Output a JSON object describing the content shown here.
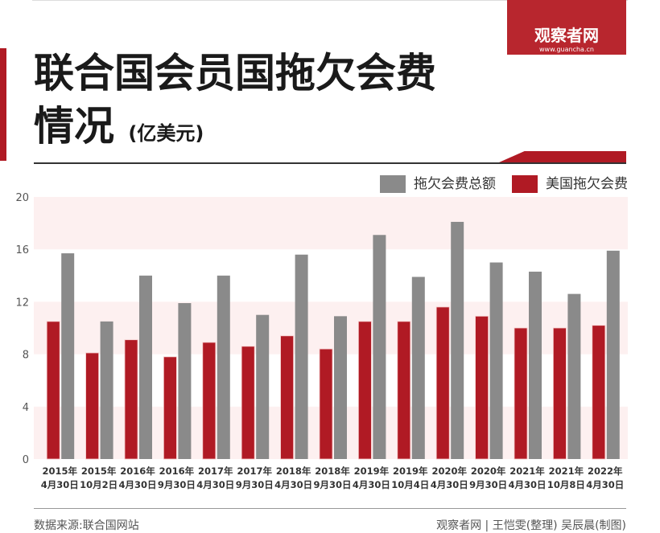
{
  "logo": {
    "name": "观察者网",
    "url": "www.guancha.cn"
  },
  "title_line1": "联合国会员国拖欠会费",
  "title_line2": "情况",
  "title_unit": "(亿美元)",
  "footer": {
    "source": "数据来源:联合国网站",
    "credit": "观察者网 | 王恺雯(整理) 吴辰晨(制图)"
  },
  "colors": {
    "accent": "#b01a24",
    "gray": "#8a8a8a",
    "band": "#fdf0f0"
  },
  "chart_data": {
    "type": "bar",
    "categories": [
      "2015年\n4月30日",
      "2015年\n10月2日",
      "2016年\n4月30日",
      "2016年\n9月30日",
      "2017年\n4月30日",
      "2017年\n9月30日",
      "2018年\n4月30日",
      "2018年\n9月30日",
      "2019年\n4月30日",
      "2019年\n10月4日",
      "2020年\n4月30日",
      "2020年\n9月30日",
      "2021年\n4月30日",
      "2021年\n10月8日",
      "2022年\n4月30日"
    ],
    "series": [
      {
        "name": "美国拖欠会费",
        "color": "#b01a24",
        "values": [
          10.5,
          8.1,
          9.1,
          7.8,
          8.9,
          8.6,
          9.4,
          8.4,
          10.5,
          10.5,
          11.6,
          10.9,
          10.0,
          10.0,
          10.2
        ]
      },
      {
        "name": "拖欠会费总额",
        "color": "#8a8a8a",
        "values": [
          15.7,
          10.5,
          14.0,
          11.9,
          14.0,
          11.0,
          15.6,
          10.9,
          17.1,
          13.9,
          18.1,
          15.0,
          14.3,
          12.6,
          15.9
        ]
      }
    ],
    "legend_order": [
      "拖欠会费总额",
      "美国拖欠会费"
    ],
    "yticks": [
      0,
      4,
      8,
      12,
      16,
      20
    ],
    "ylim": [
      0,
      20
    ],
    "legend": "top-right",
    "grid": false
  }
}
